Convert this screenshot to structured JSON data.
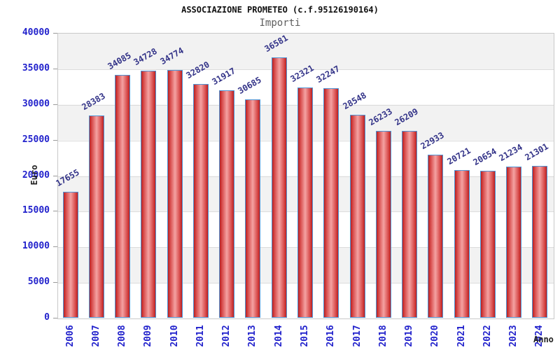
{
  "chart_data": {
    "type": "bar",
    "title": "ASSOCIAZIONE PROMETEO (c.f.95126190164)",
    "subtitle": "Importi",
    "xlabel": "Anno",
    "ylabel": "Euro",
    "categories": [
      "2006",
      "2007",
      "2008",
      "2009",
      "2010",
      "2011",
      "2012",
      "2013",
      "2014",
      "2015",
      "2016",
      "2017",
      "2018",
      "2019",
      "2020",
      "2021",
      "2022",
      "2023",
      "2024"
    ],
    "values": [
      17655,
      28383,
      34085,
      34728,
      34774,
      32820,
      31917,
      30685,
      36581,
      32321,
      32247,
      28548,
      26233,
      26209,
      22933,
      20721,
      20654,
      21234,
      21301
    ],
    "ylim": [
      0,
      40000
    ],
    "ytick_step": 5000,
    "yticks": [
      0,
      5000,
      10000,
      15000,
      20000,
      25000,
      30000,
      35000,
      40000
    ],
    "grid": "horizontal alternating bands, light gridlines every 5000",
    "legend": "none",
    "value_labels": "above bars, rotated 30deg"
  },
  "colors": {
    "bar_edge": "#bb2020",
    "bar_center": "#f4a2a2",
    "bar_border": "#4f94d4",
    "tick_label_blue": "#2222cc",
    "value_label_navy": "#333388",
    "axis_title_dark": "#222222",
    "band_gray": "#f2f2f2",
    "band_white": "#ffffff",
    "plot_border": "#c9c9c9",
    "title_black": "#111111",
    "subtitle_gray": "#5f5f5f"
  }
}
